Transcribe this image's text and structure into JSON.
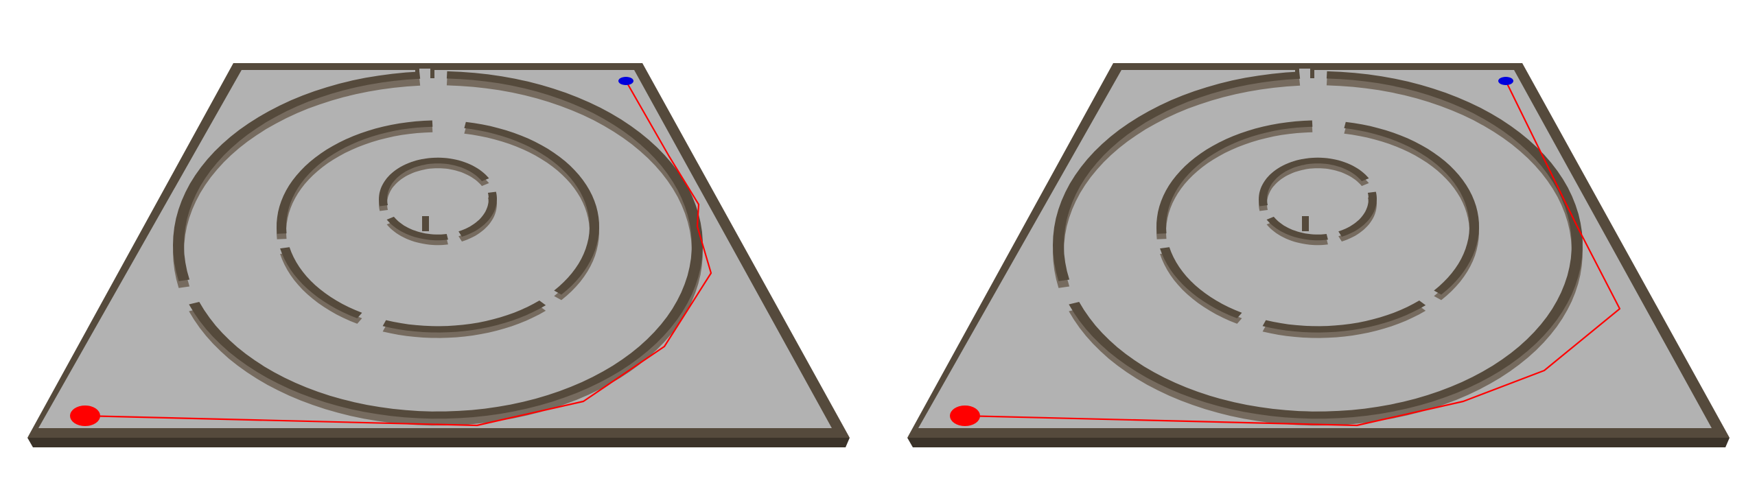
{
  "scene": {
    "background_color": "#ffffff",
    "floor_color": "#b2b2b2",
    "wall_color": "#554a3c",
    "wall_face_color": "#766b5f",
    "start_marker_color": "#ff0000",
    "goal_marker_color": "#0000dd",
    "path_color": "#ff0000"
  },
  "panels": [
    {
      "label": "",
      "maze_shape": "circular",
      "ring_count": 3,
      "start_marker": "red-ellipse",
      "goal_marker": "blue-ellipse",
      "path_segment_count": 7
    },
    {
      "label": "",
      "maze_shape": "circular",
      "ring_count": 3,
      "start_marker": "red-ellipse",
      "goal_marker": "blue-ellipse",
      "path_segment_count": 4
    }
  ]
}
